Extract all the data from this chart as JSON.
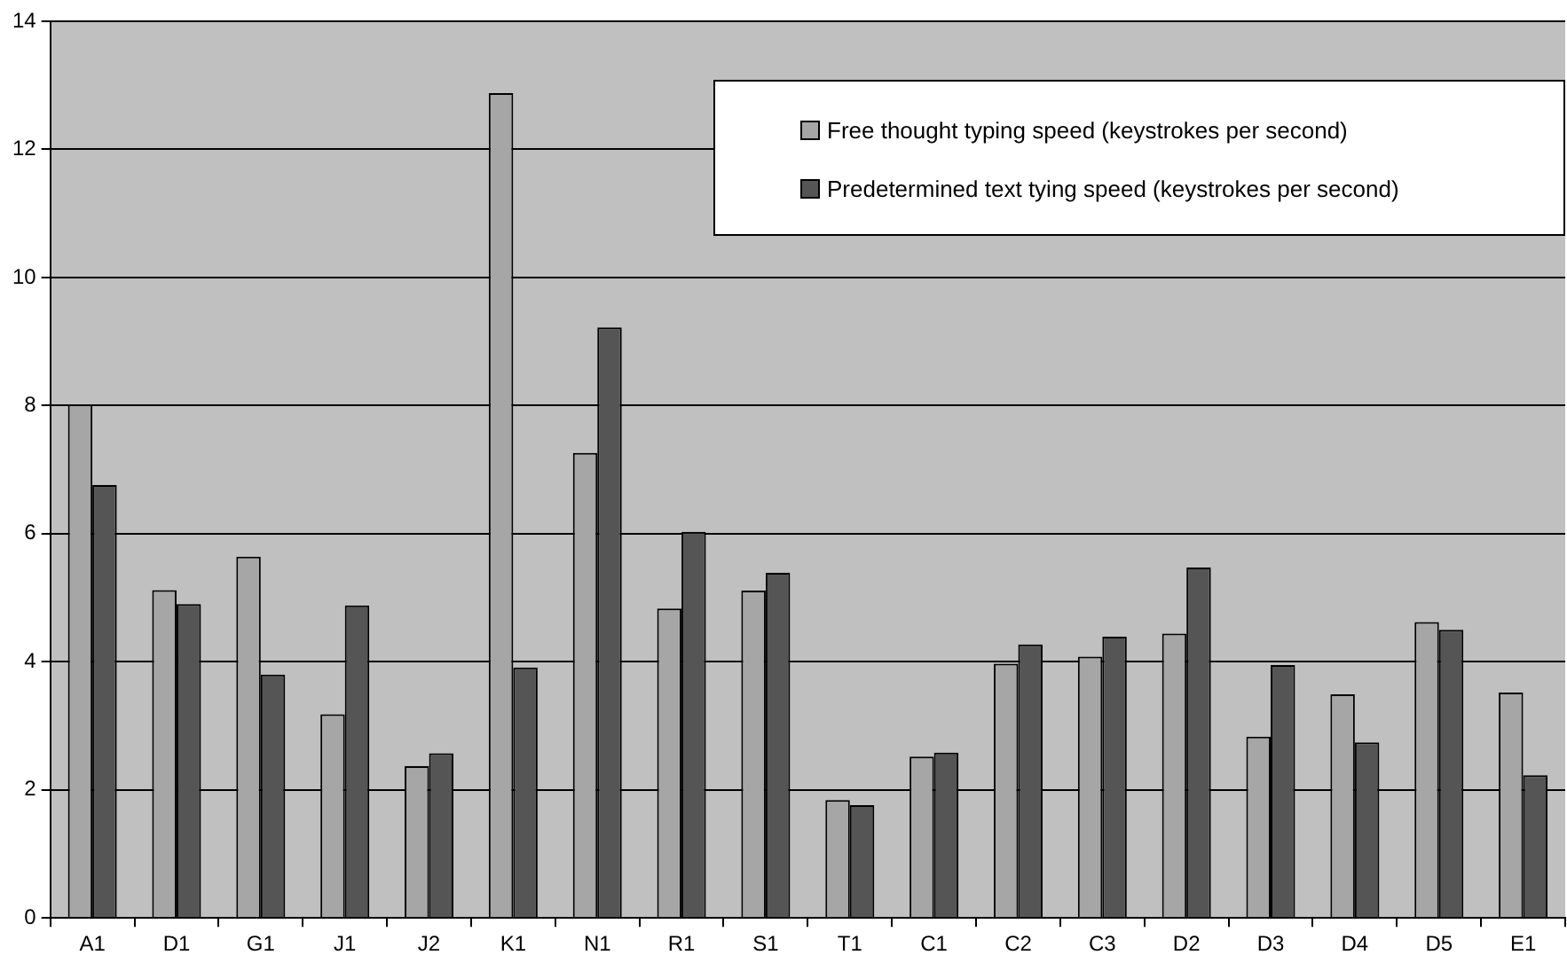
{
  "chart_data": {
    "type": "bar",
    "categories": [
      "A1",
      "D1",
      "G1",
      "J1",
      "J2",
      "K1",
      "N1",
      "R1",
      "S1",
      "T1",
      "C1",
      "C2",
      "C3",
      "D2",
      "D3",
      "D4",
      "D5",
      "E1"
    ],
    "series": [
      {
        "name": "Free thought typing speed (keystrokes per second)",
        "color": "#a6a6a6",
        "values": [
          8.02,
          5.12,
          5.64,
          3.18,
          2.37,
          12.88,
          7.26,
          4.83,
          5.11,
          1.84,
          2.52,
          3.97,
          4.08,
          4.44,
          2.83,
          3.49,
          4.62,
          3.52
        ]
      },
      {
        "name": "Predetermined text tying speed (keystrokes per second)",
        "color": "#555555",
        "values": [
          6.76,
          4.9,
          3.8,
          4.88,
          2.57,
          3.91,
          9.22,
          6.03,
          5.39,
          1.76,
          2.58,
          4.27,
          4.39,
          5.47,
          3.95,
          2.74,
          4.5,
          2.23
        ]
      }
    ],
    "ylim": [
      0,
      14
    ],
    "yticks": [
      0,
      2,
      4,
      6,
      8,
      10,
      12,
      14
    ],
    "grid": "y",
    "legend": "top right"
  }
}
